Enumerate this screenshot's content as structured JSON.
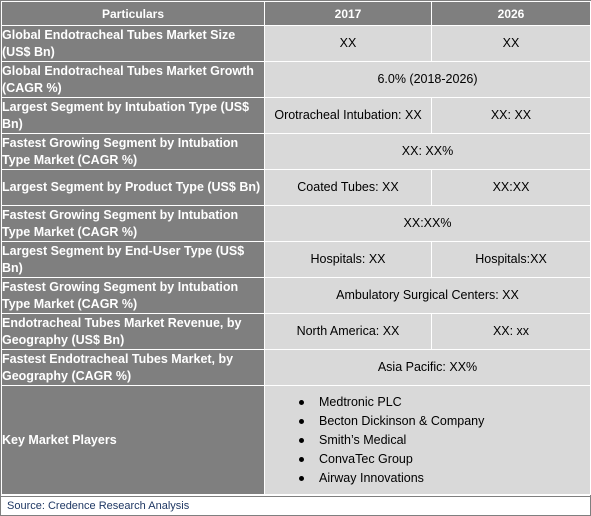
{
  "header": {
    "col1": "Particulars",
    "col2": "2017",
    "col3": "2026"
  },
  "rows": [
    {
      "label": "Global Endotracheal Tubes Market Size (US$ Bn)",
      "v2017": "XX",
      "v2026": "XX"
    },
    {
      "label": "Global Endotracheal Tubes Market Growth (CAGR %)",
      "merged": "6.0% (2018-2026)"
    },
    {
      "label": "Largest Segment by Intubation Type (US$ Bn)",
      "v2017": "Orotracheal Intubation: XX",
      "v2026": "XX:  XX"
    },
    {
      "label": "Fastest Growing Segment by Intubation Type Market (CAGR %)",
      "merged": "XX: XX%"
    },
    {
      "label": "Largest Segment by Product Type (US$ Bn)",
      "v2017": "Coated Tubes: XX",
      "v2026": "XX:XX"
    },
    {
      "label": "Fastest Growing Segment by Intubation Type Market (CAGR %)",
      "merged": "XX:XX%"
    },
    {
      "label": "Largest Segment by End-User Type (US$ Bn)",
      "v2017": "Hospitals: XX",
      "v2026": "Hospitals:XX"
    },
    {
      "label": "Fastest Growing Segment by Intubation Type Market (CAGR %)",
      "merged": "Ambulatory Surgical Centers: XX"
    },
    {
      "label": "Endotracheal Tubes Market Revenue, by Geography (US$ Bn)",
      "v2017": "North America: XX",
      "v2026": "XX: xx"
    },
    {
      "label": "Fastest Endotracheal Tubes Market, by Geography (CAGR %)",
      "merged": "Asia Pacific: XX%"
    }
  ],
  "key_players": {
    "label": "Key Market Players",
    "items": [
      "Medtronic PLC",
      "Becton Dickinson & Company",
      "Smith’s Medical",
      "ConvaTec Group",
      "Airway Innovations"
    ]
  },
  "source": "Source: Credence Research Analysis"
}
